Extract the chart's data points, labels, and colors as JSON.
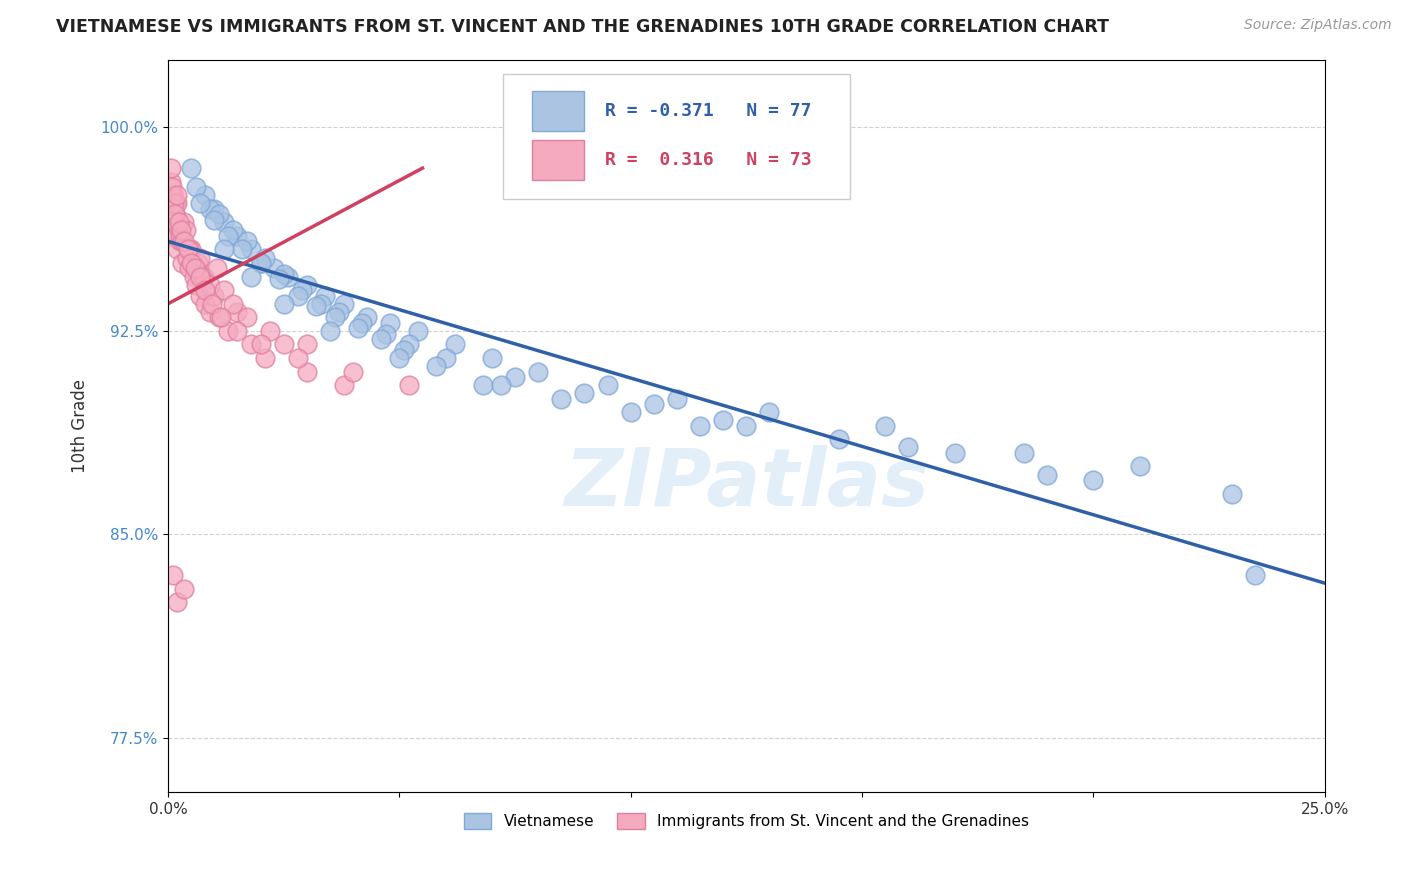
{
  "title": "VIETNAMESE VS IMMIGRANTS FROM ST. VINCENT AND THE GRENADINES 10TH GRADE CORRELATION CHART",
  "source": "Source: ZipAtlas.com",
  "ylabel": "10th Grade",
  "yticks": [
    77.5,
    85.0,
    92.5,
    100.0
  ],
  "xlim": [
    0.0,
    25.0
  ],
  "ylim": [
    75.5,
    102.5
  ],
  "blue_R": -0.371,
  "blue_N": 77,
  "pink_R": 0.316,
  "pink_N": 73,
  "blue_color": "#aac4e2",
  "pink_color": "#f5aac0",
  "blue_line_color": "#3060a8",
  "pink_line_color": "#d04060",
  "blue_edge_color": "#80a8d8",
  "pink_edge_color": "#e080a0",
  "watermark": "ZIPatlas",
  "legend_label_blue": "Vietnamese",
  "legend_label_pink": "Immigrants from St. Vincent and the Grenadines",
  "blue_scatter_x": [
    0.5,
    0.8,
    1.0,
    1.2,
    1.5,
    1.8,
    2.0,
    2.3,
    2.6,
    3.0,
    3.4,
    3.8,
    4.3,
    4.8,
    5.4,
    6.2,
    7.0,
    8.0,
    9.5,
    11.0,
    13.0,
    15.5,
    18.5,
    21.0,
    23.5,
    0.6,
    0.9,
    1.1,
    1.4,
    1.7,
    2.1,
    2.5,
    2.9,
    3.3,
    3.7,
    4.2,
    4.7,
    5.2,
    6.0,
    7.5,
    9.0,
    10.5,
    12.0,
    14.5,
    17.0,
    0.7,
    1.0,
    1.3,
    1.6,
    2.0,
    2.4,
    2.8,
    3.2,
    3.6,
    4.1,
    4.6,
    5.1,
    5.8,
    6.8,
    8.5,
    10.0,
    12.5,
    16.0,
    19.0,
    23.0,
    1.2,
    1.8,
    2.5,
    3.5,
    5.0,
    7.2,
    11.5,
    20.0
  ],
  "blue_scatter_y": [
    98.5,
    97.5,
    97.0,
    96.5,
    96.0,
    95.5,
    95.0,
    94.8,
    94.5,
    94.2,
    93.8,
    93.5,
    93.0,
    92.8,
    92.5,
    92.0,
    91.5,
    91.0,
    90.5,
    90.0,
    89.5,
    89.0,
    88.0,
    87.5,
    83.5,
    97.8,
    97.0,
    96.8,
    96.2,
    95.8,
    95.2,
    94.6,
    94.0,
    93.5,
    93.2,
    92.8,
    92.4,
    92.0,
    91.5,
    90.8,
    90.2,
    89.8,
    89.2,
    88.5,
    88.0,
    97.2,
    96.6,
    96.0,
    95.5,
    95.0,
    94.4,
    93.8,
    93.4,
    93.0,
    92.6,
    92.2,
    91.8,
    91.2,
    90.5,
    90.0,
    89.5,
    89.0,
    88.2,
    87.2,
    86.5,
    95.5,
    94.5,
    93.5,
    92.5,
    91.5,
    90.5,
    89.0,
    87.0
  ],
  "pink_scatter_x": [
    0.05,
    0.08,
    0.1,
    0.12,
    0.15,
    0.18,
    0.2,
    0.23,
    0.26,
    0.3,
    0.35,
    0.4,
    0.45,
    0.5,
    0.55,
    0.6,
    0.65,
    0.7,
    0.75,
    0.8,
    0.9,
    1.0,
    1.1,
    1.3,
    1.5,
    1.8,
    2.1,
    2.5,
    3.0,
    3.8,
    0.07,
    0.1,
    0.13,
    0.16,
    0.2,
    0.25,
    0.3,
    0.38,
    0.45,
    0.52,
    0.6,
    0.68,
    0.78,
    0.9,
    1.05,
    1.2,
    1.4,
    1.7,
    2.2,
    3.0,
    0.06,
    0.09,
    0.12,
    0.15,
    0.19,
    0.23,
    0.28,
    0.34,
    0.42,
    0.5,
    0.58,
    0.68,
    0.8,
    0.95,
    1.15,
    1.5,
    2.0,
    2.8,
    4.0,
    5.2,
    0.1,
    0.2,
    0.35
  ],
  "pink_scatter_y": [
    97.0,
    96.5,
    97.5,
    96.0,
    96.8,
    97.2,
    95.5,
    96.2,
    95.8,
    95.0,
    96.5,
    95.2,
    94.8,
    95.5,
    94.5,
    94.2,
    95.0,
    93.8,
    94.5,
    93.5,
    93.2,
    93.8,
    93.0,
    92.5,
    93.2,
    92.0,
    91.5,
    92.0,
    91.0,
    90.5,
    98.0,
    97.5,
    97.0,
    96.5,
    97.2,
    96.0,
    95.8,
    96.2,
    95.5,
    95.0,
    94.8,
    95.2,
    94.5,
    94.2,
    94.8,
    94.0,
    93.5,
    93.0,
    92.5,
    92.0,
    98.5,
    97.8,
    97.2,
    96.8,
    97.5,
    96.5,
    96.2,
    95.8,
    95.5,
    95.0,
    94.8,
    94.5,
    94.0,
    93.5,
    93.0,
    92.5,
    92.0,
    91.5,
    91.0,
    90.5,
    83.5,
    82.5,
    83.0
  ],
  "blue_trend_x0": 0.0,
  "blue_trend_x1": 25.0,
  "blue_trend_y0": 95.8,
  "blue_trend_y1": 83.2,
  "pink_trend_x0": 0.0,
  "pink_trend_x1": 5.5,
  "pink_trend_y0": 93.5,
  "pink_trend_y1": 98.5
}
